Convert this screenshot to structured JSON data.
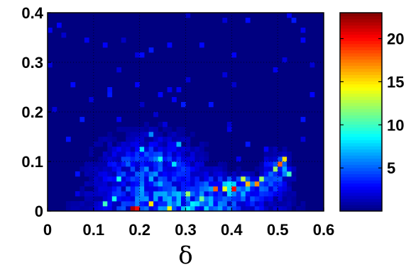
{
  "chart_data": {
    "type": "heatmap",
    "xlabel": "δ",
    "ylabel": "",
    "xlim": [
      0,
      0.6
    ],
    "ylim": [
      0,
      0.4
    ],
    "x_ticks": [
      "0",
      "0.1",
      "0.2",
      "0.3",
      "0.4",
      "0.5",
      "0.6"
    ],
    "y_ticks": [
      "0",
      "0.1",
      "0.2",
      "0.3",
      "0.4"
    ],
    "grid": "dotted",
    "colorbar": {
      "colormap": "jet",
      "range": [
        0,
        23
      ],
      "ticks": [
        "5",
        "10",
        "15",
        "20"
      ]
    },
    "bin_size": {
      "x": 0.01,
      "y": 0.01
    },
    "hotspots": [
      {
        "x": 0.18,
        "y": 0.005,
        "value": 22
      },
      {
        "x": 0.19,
        "y": 0.005,
        "value": 20
      },
      {
        "x": 0.22,
        "y": 0.01,
        "value": 15
      },
      {
        "x": 0.26,
        "y": 0.005,
        "value": 14
      },
      {
        "x": 0.36,
        "y": 0.045,
        "value": 18
      },
      {
        "x": 0.4,
        "y": 0.045,
        "value": 20
      },
      {
        "x": 0.43,
        "y": 0.055,
        "value": 16
      },
      {
        "x": 0.45,
        "y": 0.05,
        "value": 17
      },
      {
        "x": 0.5,
        "y": 0.09,
        "value": 18
      },
      {
        "x": 0.51,
        "y": 0.1,
        "value": 15
      },
      {
        "x": 0.49,
        "y": 0.08,
        "value": 12
      },
      {
        "x": 0.3,
        "y": 0.03,
        "value": 12
      },
      {
        "x": 0.33,
        "y": 0.025,
        "value": 11
      },
      {
        "x": 0.24,
        "y": 0.1,
        "value": 9
      },
      {
        "x": 0.2,
        "y": 0.12,
        "value": 8
      },
      {
        "x": 0.27,
        "y": 0.09,
        "value": 8
      },
      {
        "x": 0.15,
        "y": 0.06,
        "value": 9
      },
      {
        "x": 0.12,
        "y": 0.015,
        "value": 10
      },
      {
        "x": 0.14,
        "y": 0.02,
        "value": 9
      },
      {
        "x": 0.38,
        "y": 0.04,
        "value": 14
      },
      {
        "x": 0.42,
        "y": 0.06,
        "value": 13
      },
      {
        "x": 0.47,
        "y": 0.065,
        "value": 12
      },
      {
        "x": 0.52,
        "y": 0.07,
        "value": 10
      },
      {
        "x": 0.28,
        "y": 0.13,
        "value": 7
      },
      {
        "x": 0.22,
        "y": 0.15,
        "value": 6
      }
    ]
  }
}
